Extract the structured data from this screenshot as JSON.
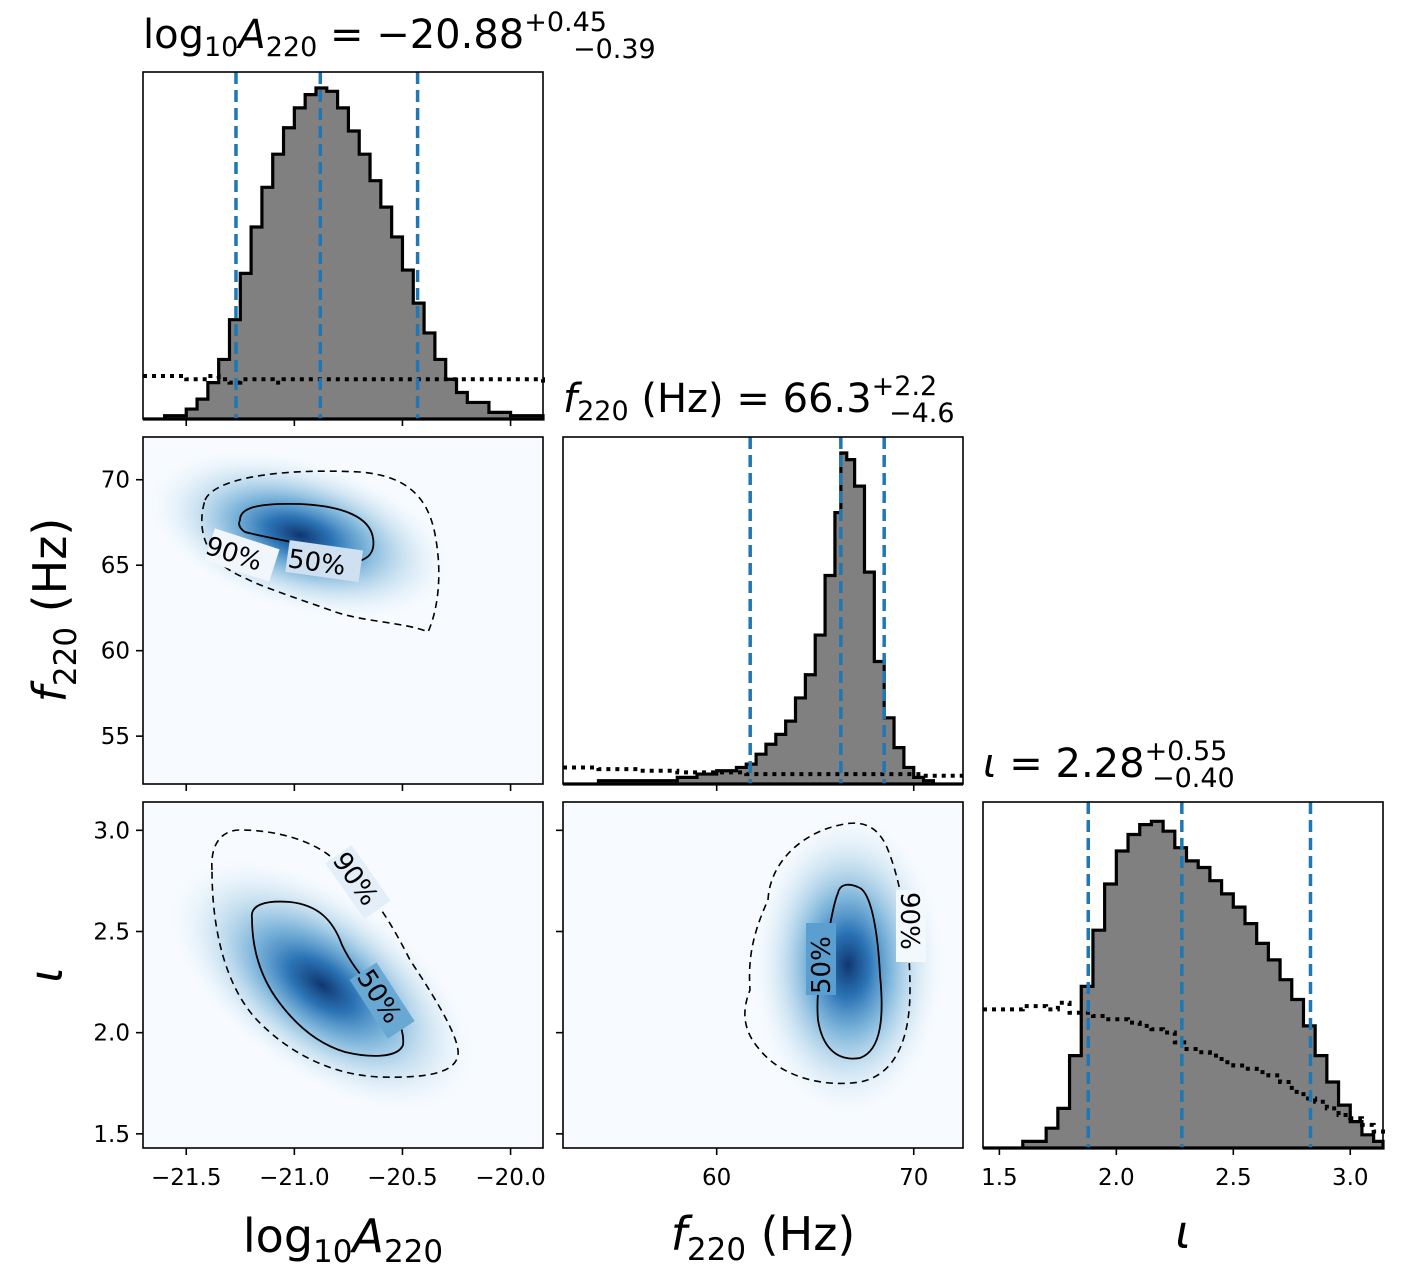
{
  "colors": {
    "hist_fill": "#808080",
    "hist_edge": "#000000",
    "quantile_line": "#1f77b4",
    "density_cmap_low": "#f7fbff",
    "density_cmap_high": "#08306b"
  },
  "chart_data": {
    "type": "corner",
    "parameters": [
      {
        "key": "logA",
        "label": "log10A220",
        "title": {
          "base": "log10A220 = −20.88",
          "sup": "+0.45",
          "sub": "−0.39"
        },
        "median": -20.88,
        "err_plus": 0.45,
        "err_minus": 0.39,
        "range": [
          -21.7,
          -19.85
        ],
        "ticks": [
          -21.5,
          -21.0,
          -20.5,
          -20.0
        ],
        "tick_labels": [
          "−21.5",
          "−21.0",
          "−20.5",
          "−20.0"
        ],
        "quantiles": [
          -21.27,
          -20.88,
          -20.43
        ]
      },
      {
        "key": "f220",
        "label": "f220 (Hz)",
        "title": {
          "base": "f220 (Hz) = 66.3",
          "sup": "+2.2",
          "sub": "−4.6"
        },
        "median": 66.3,
        "err_plus": 2.2,
        "err_minus": 4.6,
        "range": [
          52.2,
          72.5
        ],
        "ticks": [
          55,
          60,
          65,
          70
        ],
        "tick_labels": [
          "55",
          "60",
          "65",
          "70"
        ],
        "xticks": [
          60,
          70
        ],
        "xtick_labels": [
          "60",
          "70"
        ],
        "quantiles": [
          61.7,
          66.3,
          68.5
        ]
      },
      {
        "key": "iota",
        "label": "ι",
        "title": {
          "base": "ι = 2.28",
          "sup": "+0.55",
          "sub": "−0.40"
        },
        "median": 2.28,
        "err_plus": 0.55,
        "err_minus": 0.4,
        "range": [
          1.43,
          3.14
        ],
        "ticks": [
          1.5,
          2.0,
          2.5,
          3.0
        ],
        "tick_labels": [
          "1.5",
          "2.0",
          "2.5",
          "3.0"
        ],
        "quantiles": [
          1.88,
          2.28,
          2.83
        ]
      }
    ],
    "histograms": {
      "logA": {
        "x": [
          -21.7,
          -21.6,
          -21.5,
          -21.45,
          -21.4,
          -21.35,
          -21.3,
          -21.25,
          -21.2,
          -21.15,
          -21.1,
          -21.05,
          -21.0,
          -20.95,
          -20.9,
          -20.85,
          -20.8,
          -20.75,
          -20.7,
          -20.65,
          -20.6,
          -20.55,
          -20.5,
          -20.45,
          -20.4,
          -20.35,
          -20.3,
          -20.25,
          -20.2,
          -20.1,
          -20.0,
          -19.85
        ],
        "density": [
          0.0,
          0.01,
          0.03,
          0.06,
          0.11,
          0.18,
          0.3,
          0.44,
          0.58,
          0.7,
          0.8,
          0.88,
          0.94,
          0.98,
          1.0,
          0.99,
          0.94,
          0.87,
          0.8,
          0.72,
          0.64,
          0.55,
          0.45,
          0.35,
          0.26,
          0.18,
          0.12,
          0.08,
          0.05,
          0.02,
          0.01,
          0.0
        ],
        "prior": [
          0.13,
          0.13,
          0.12,
          0.12,
          0.13,
          0.12,
          0.11,
          0.12,
          0.12,
          0.12,
          0.11,
          0.12,
          0.12,
          0.12,
          0.12,
          0.12,
          0.12,
          0.12,
          0.12,
          0.12,
          0.12,
          0.12,
          0.12,
          0.12,
          0.12,
          0.12,
          0.12,
          0.12,
          0.12,
          0.12,
          0.12,
          0.11
        ]
      },
      "f220": {
        "x": [
          52.2,
          54,
          56,
          58,
          59,
          60,
          61,
          61.5,
          62,
          62.5,
          63,
          63.5,
          64,
          64.5,
          65,
          65.5,
          66,
          66.3,
          66.6,
          67,
          67.5,
          68,
          68.5,
          69,
          69.5,
          70,
          70.5,
          71,
          72.5
        ],
        "density": [
          0.0,
          0.01,
          0.01,
          0.02,
          0.03,
          0.04,
          0.05,
          0.06,
          0.09,
          0.12,
          0.15,
          0.19,
          0.26,
          0.33,
          0.45,
          0.63,
          0.82,
          1.0,
          0.98,
          0.9,
          0.64,
          0.37,
          0.2,
          0.11,
          0.05,
          0.02,
          0.01,
          0.0,
          0.0
        ],
        "prior": [
          0.05,
          0.045,
          0.04,
          0.035,
          0.035,
          0.035,
          0.035,
          0.03,
          0.03,
          0.03,
          0.03,
          0.03,
          0.03,
          0.03,
          0.03,
          0.03,
          0.03,
          0.03,
          0.03,
          0.03,
          0.03,
          0.03,
          0.03,
          0.03,
          0.03,
          0.03,
          0.025,
          0.025,
          0.025
        ]
      },
      "iota": {
        "x": [
          1.43,
          1.6,
          1.7,
          1.75,
          1.8,
          1.85,
          1.9,
          1.95,
          2.0,
          2.05,
          2.1,
          2.15,
          2.2,
          2.25,
          2.3,
          2.35,
          2.4,
          2.45,
          2.5,
          2.55,
          2.6,
          2.65,
          2.7,
          2.75,
          2.8,
          2.85,
          2.9,
          2.95,
          3.0,
          3.05,
          3.1,
          3.14
        ],
        "density": [
          0.0,
          0.02,
          0.06,
          0.12,
          0.28,
          0.49,
          0.66,
          0.8,
          0.9,
          0.95,
          0.98,
          0.99,
          0.96,
          0.91,
          0.87,
          0.85,
          0.81,
          0.77,
          0.73,
          0.68,
          0.62,
          0.57,
          0.51,
          0.45,
          0.37,
          0.28,
          0.2,
          0.13,
          0.08,
          0.04,
          0.02,
          0.0
        ],
        "prior": [
          0.42,
          0.43,
          0.42,
          0.44,
          0.41,
          0.41,
          0.4,
          0.39,
          0.39,
          0.38,
          0.37,
          0.36,
          0.35,
          0.32,
          0.3,
          0.29,
          0.28,
          0.26,
          0.25,
          0.24,
          0.23,
          0.22,
          0.2,
          0.17,
          0.15,
          0.14,
          0.12,
          0.1,
          0.09,
          0.07,
          0.05,
          0.04
        ]
      }
    },
    "joint_2d": [
      {
        "x": "logA",
        "y": "f220",
        "contour_levels": [
          "90%",
          "50%"
        ],
        "peak": [
          -20.95,
          66.6
        ],
        "corr": -0.45
      },
      {
        "x": "logA",
        "y": "iota",
        "contour_levels": [
          "90%",
          "50%"
        ],
        "peak": [
          -20.88,
          2.25
        ],
        "corr": -0.78
      },
      {
        "x": "f220",
        "y": "iota",
        "contour_levels": [
          "50%",
          "90%"
        ],
        "peak": [
          66.4,
          2.2
        ],
        "corr": 0.1
      }
    ]
  }
}
